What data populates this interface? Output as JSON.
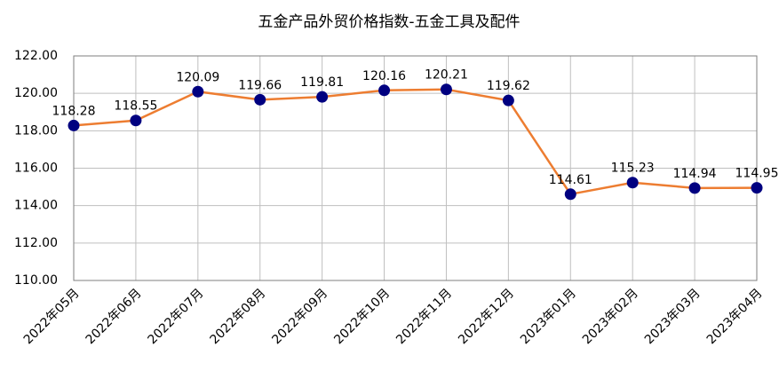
{
  "chart_data": {
    "type": "line",
    "title": "五金产品外贸价格指数-五金工具及配件",
    "categories": [
      "2022年05月",
      "2022年06月",
      "2022年07月",
      "2022年08月",
      "2022年09月",
      "2022年10月",
      "2022年11月",
      "2022年12月",
      "2023年01月",
      "2023年02月",
      "2023年03月",
      "2023年04月"
    ],
    "series": [
      {
        "values": [
          118.28,
          118.55,
          120.09,
          119.66,
          119.81,
          120.16,
          120.21,
          119.62,
          114.61,
          115.23,
          114.94,
          114.95
        ],
        "color": "#ED7D31",
        "marker_color": "#000080"
      }
    ],
    "ylim": [
      110,
      122
    ],
    "yticks": [
      {
        "value": 110,
        "label": "110.00"
      },
      {
        "value": 112,
        "label": "112.00"
      },
      {
        "value": 114,
        "label": "114.00"
      },
      {
        "value": 116,
        "label": "116.00"
      },
      {
        "value": 118,
        "label": "118.00"
      },
      {
        "value": 120,
        "label": "120.00"
      },
      {
        "value": 122,
        "label": "122.00"
      }
    ],
    "grid": true
  }
}
